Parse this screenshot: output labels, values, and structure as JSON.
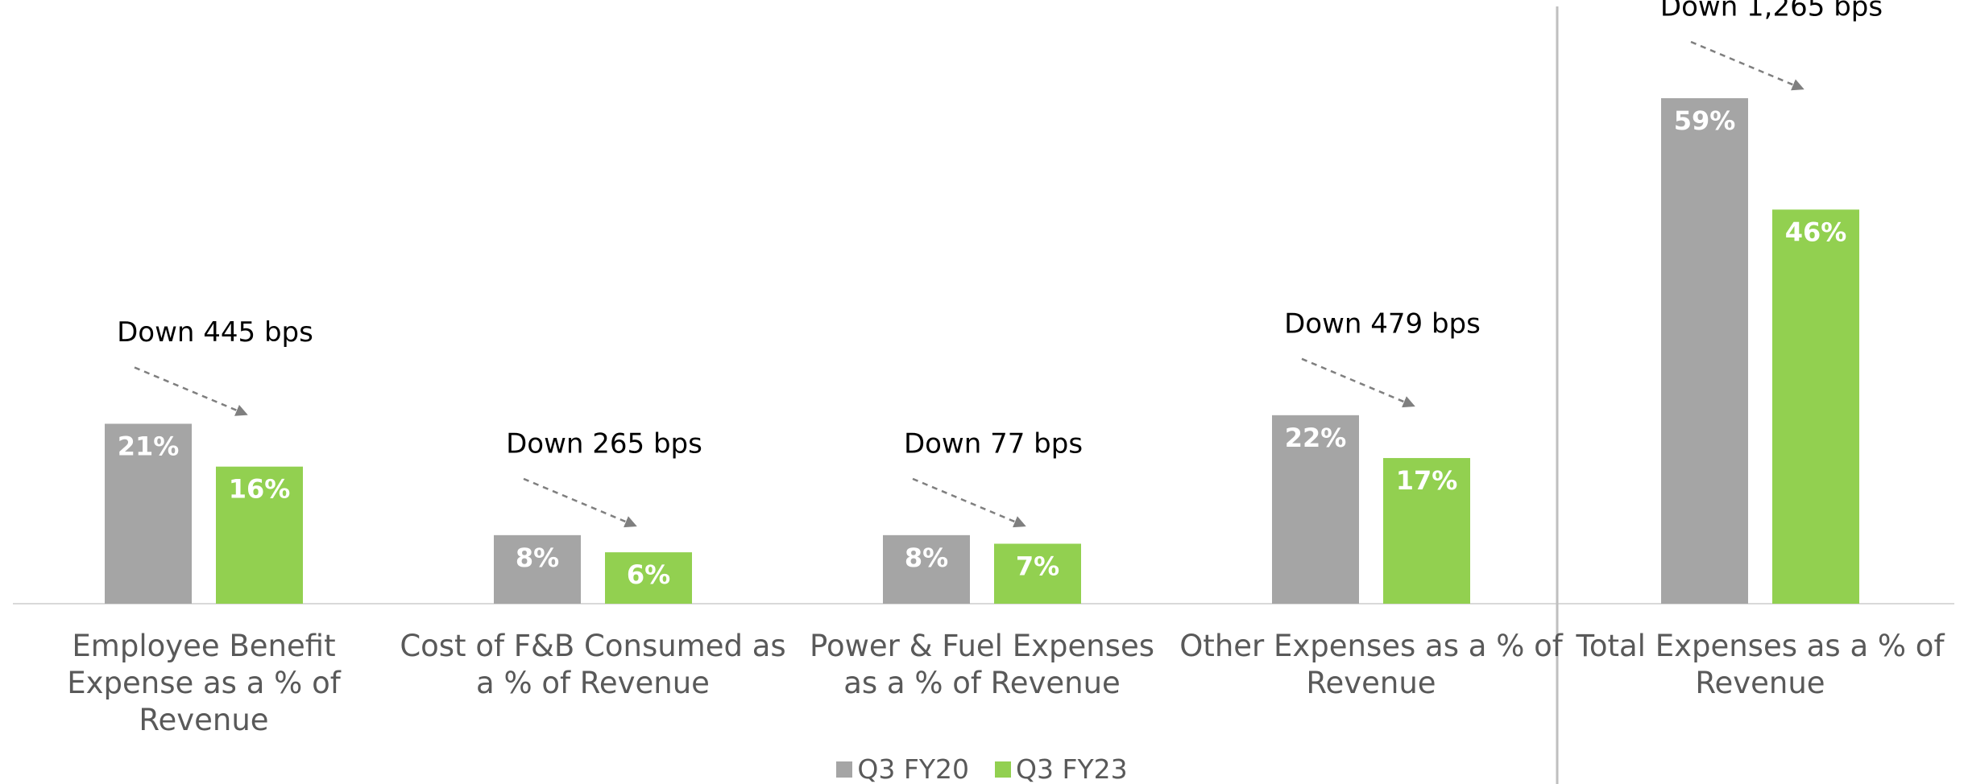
{
  "chart_data": {
    "type": "bar",
    "categories": [
      "Employee Benefit Expense as a % of Revenue",
      "Cost of F&B Consumed as a % of Revenue",
      "Power & Fuel Expenses as a % of Revenue",
      "Other Expenses as a % of Revenue",
      "Total Expenses as a % of Revenue"
    ],
    "series": [
      {
        "name": "Q3 FY20",
        "color": "#a5a5a5",
        "values": [
          21,
          8,
          8,
          22,
          59
        ],
        "value_labels": [
          "21%",
          "8%",
          "8%",
          "22%",
          "59%"
        ]
      },
      {
        "name": "Q3 FY23",
        "color": "#92d050",
        "values": [
          16,
          6,
          7,
          17,
          46
        ],
        "value_labels": [
          "16%",
          "6%",
          "7%",
          "17%",
          "46%"
        ]
      }
    ],
    "annotations": [
      "Down 445 bps",
      "Down 265 bps",
      "Down 77 bps",
      "Down 479 bps",
      "Down 1,265 bps"
    ],
    "legend": "bottom"
  }
}
